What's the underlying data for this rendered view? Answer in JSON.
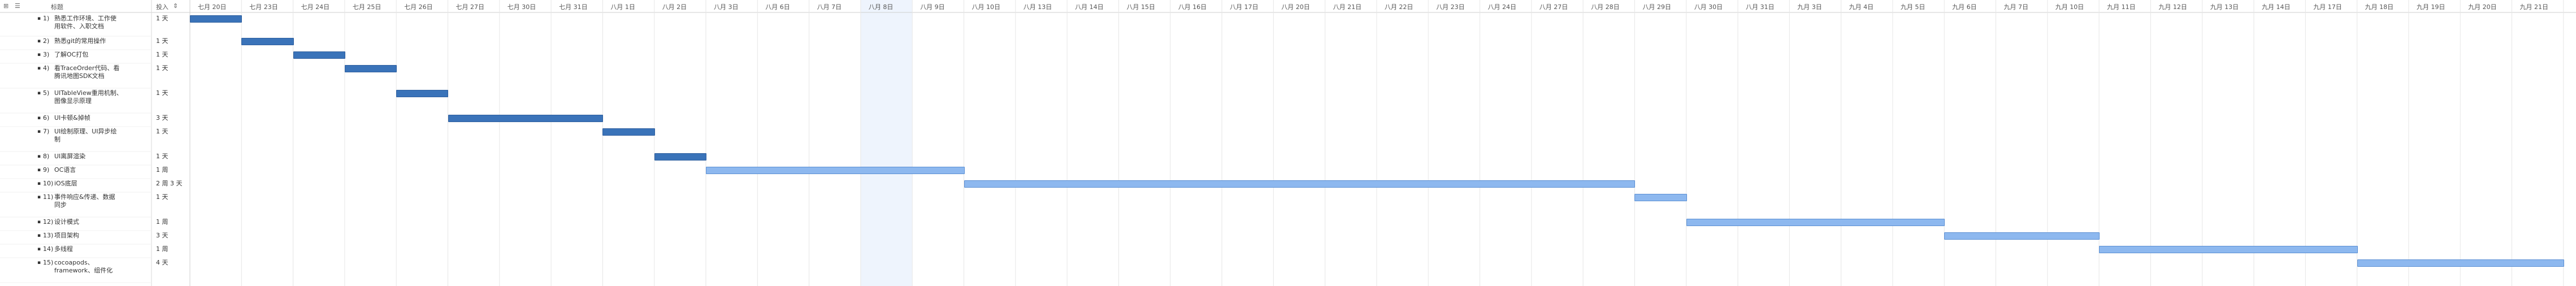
{
  "toolbar": {
    "icon1": "grid-icon",
    "icon2": "tasks-icon"
  },
  "columns": {
    "title": "标题",
    "duration": "投入"
  },
  "dates": [
    "七月 20日",
    "七月 23日",
    "七月 24日",
    "七月 25日",
    "七月 26日",
    "七月 27日",
    "七月 30日",
    "七月 31日",
    "八月 1日",
    "八月 2日",
    "八月 3日",
    "八月 6日",
    "八月 7日",
    "八月 8日",
    "八月 9日",
    "八月 10日",
    "八月 13日",
    "八月 14日",
    "八月 15日",
    "八月 16日",
    "八月 17日",
    "八月 20日",
    "八月 21日",
    "八月 22日",
    "八月 23日",
    "八月 24日",
    "八月 27日",
    "八月 28日",
    "八月 29日",
    "八月 30日",
    "八月 31日",
    "九月 3日",
    "九月 4日",
    "九月 5日",
    "九月 6日",
    "九月 7日",
    "九月 10日",
    "九月 11日",
    "九月 12日",
    "九月 13日",
    "九月 14日",
    "九月 17日",
    "九月 18日",
    "九月 19日",
    "九月 20日",
    "九月 21日"
  ],
  "highlight_column_index": 13,
  "tasks": [
    {
      "num": "1)",
      "title": [
        "熟悉工作环境、工作使",
        "用软件、入职文档"
      ],
      "duration": "1 天",
      "start": 0,
      "length": 1,
      "style": "dark"
    },
    {
      "num": "2)",
      "title": [
        "熟悉git的常用操作"
      ],
      "duration": "1 天",
      "start": 1,
      "length": 1,
      "style": "dark"
    },
    {
      "num": "3)",
      "title": [
        "了解OC打包"
      ],
      "duration": "1 天",
      "start": 2,
      "length": 1,
      "style": "dark"
    },
    {
      "num": "4)",
      "title": [
        "看TraceOrder代码、看",
        "腾讯地图SDK文档"
      ],
      "duration": "1 天",
      "start": 3,
      "length": 1,
      "style": "dark"
    },
    {
      "num": "5)",
      "title": [
        "UITableView重用机制、",
        "图像显示原理"
      ],
      "duration": "1 天",
      "start": 4,
      "length": 1,
      "style": "dark"
    },
    {
      "num": "6)",
      "title": [
        "UI卡顿&掉帧"
      ],
      "duration": "3 天",
      "start": 5,
      "length": 3,
      "style": "dark"
    },
    {
      "num": "7)",
      "title": [
        "UI绘制原理、UI异步绘",
        "制"
      ],
      "duration": "1 天",
      "start": 8,
      "length": 1,
      "style": "dark"
    },
    {
      "num": "8)",
      "title": [
        "UI离屏渲染"
      ],
      "duration": "1 天",
      "start": 9,
      "length": 1,
      "style": "dark"
    },
    {
      "num": "9)",
      "title": [
        "OC语言"
      ],
      "duration": "1 周",
      "start": 10,
      "length": 5,
      "style": "light"
    },
    {
      "num": "10)",
      "title": [
        "iOS底层"
      ],
      "duration": "2 周 3 天",
      "start": 15,
      "length": 13,
      "style": "light"
    },
    {
      "num": "11)",
      "title": [
        "事件响应&传递、数据",
        "同步"
      ],
      "duration": "1 天",
      "start": 28,
      "length": 1,
      "style": "light"
    },
    {
      "num": "12)",
      "title": [
        "设计模式"
      ],
      "duration": "1 周",
      "start": 29,
      "length": 5,
      "style": "light"
    },
    {
      "num": "13)",
      "title": [
        "项目架构"
      ],
      "duration": "3 天",
      "start": 34,
      "length": 3,
      "style": "light"
    },
    {
      "num": "14)",
      "title": [
        "多线程"
      ],
      "duration": "1 周",
      "start": 37,
      "length": 5,
      "style": "light"
    },
    {
      "num": "15)",
      "title": [
        "cocoapods、",
        "framework、组件化"
      ],
      "duration": "4 天",
      "start": 42,
      "length": 4,
      "style": "light"
    }
  ],
  "colors": {
    "dark_bar": "#3a73b9",
    "light_bar": "#8db8ef",
    "highlight": "#eef4fd",
    "grid": "#e6e6e6"
  }
}
